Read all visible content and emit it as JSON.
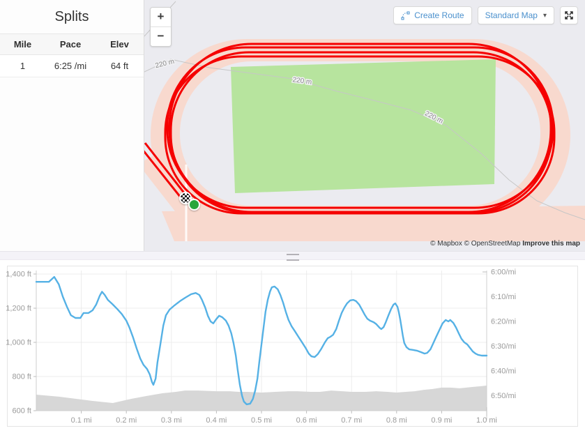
{
  "splits": {
    "title": "Splits",
    "columns": [
      "Mile",
      "Pace",
      "Elev"
    ],
    "rows": [
      {
        "mile": "1",
        "pace": "6:25",
        "pace_unit": "/mi",
        "elev": "64",
        "elev_unit": "ft"
      }
    ]
  },
  "map": {
    "zoom_in": "+",
    "zoom_out": "−",
    "create_route": "Create Route",
    "map_style": "Standard Map",
    "chevron": "▾",
    "contour_label": "220 m",
    "attribution": {
      "mapbox": "© Mapbox",
      "osm": "© OpenStreetMap",
      "improve": "Improve this map"
    },
    "colors": {
      "track": "#f8d9ce",
      "infield": "#b7e49e",
      "route": "#f50000",
      "background": "#ebebf0",
      "start_marker": "#28a63c"
    }
  },
  "chart_data": {
    "type": "line",
    "title": "",
    "x_ticks": [
      "0.1 mi",
      "0.2 mi",
      "0.3 mi",
      "0.4 mi",
      "0.5 mi",
      "0.6 mi",
      "0.7 mi",
      "0.8 mi",
      "0.9 mi",
      "1.0 mi"
    ],
    "x_tick_mi": [
      0.1,
      0.2,
      0.3,
      0.4,
      0.5,
      0.6,
      0.7,
      0.8,
      0.9,
      1.0
    ],
    "y_left_ticks": [
      "1,400 ft",
      "1,200 ft",
      "1,000 ft",
      "800 ft",
      "600 ft"
    ],
    "y_left_values": [
      1400,
      1200,
      1000,
      800,
      600
    ],
    "y_left_range": [
      600,
      1400
    ],
    "y_right_ticks": [
      "6:00/mi",
      "6:10/mi",
      "6:20/mi",
      "6:30/mi",
      "6:40/mi",
      "6:50/mi"
    ],
    "y_right_values_sec": [
      360,
      370,
      380,
      390,
      400,
      410
    ],
    "x_range_mi": [
      0,
      1.0
    ],
    "grid": true,
    "legend": "none",
    "series": [
      {
        "name": "pace",
        "axis": "right",
        "unit": "seconds_per_mile",
        "color": "#55b1e5",
        "style": "line",
        "points": [
          [
            0,
            364
          ],
          [
            0.028,
            364
          ],
          [
            0.034,
            363
          ],
          [
            0.04,
            362
          ],
          [
            0.05,
            365
          ],
          [
            0.059,
            370
          ],
          [
            0.068,
            374
          ],
          [
            0.077,
            377.5
          ],
          [
            0.087,
            378.6
          ],
          [
            0.098,
            378.6
          ],
          [
            0.105,
            376.6
          ],
          [
            0.116,
            376.6
          ],
          [
            0.125,
            375.5
          ],
          [
            0.133,
            373.2
          ],
          [
            0.141,
            369.6
          ],
          [
            0.146,
            368
          ],
          [
            0.152,
            369.3
          ],
          [
            0.159,
            371.3
          ],
          [
            0.169,
            373
          ],
          [
            0.18,
            375
          ],
          [
            0.19,
            377
          ],
          [
            0.2,
            379.7
          ],
          [
            0.207,
            382.5
          ],
          [
            0.215,
            386.5
          ],
          [
            0.223,
            391
          ],
          [
            0.231,
            395
          ],
          [
            0.238,
            397.5
          ],
          [
            0.246,
            399.2
          ],
          [
            0.252,
            401.4
          ],
          [
            0.257,
            404.5
          ],
          [
            0.26,
            405.6
          ],
          [
            0.265,
            403.1
          ],
          [
            0.269,
            396.6
          ],
          [
            0.276,
            388.7
          ],
          [
            0.282,
            381.7
          ],
          [
            0.288,
            377.5
          ],
          [
            0.296,
            375.2
          ],
          [
            0.307,
            373.5
          ],
          [
            0.319,
            371.8
          ],
          [
            0.331,
            370.4
          ],
          [
            0.344,
            369
          ],
          [
            0.354,
            368.5
          ],
          [
            0.362,
            369.3
          ],
          [
            0.368,
            371.3
          ],
          [
            0.375,
            374.4
          ],
          [
            0.381,
            377.7
          ],
          [
            0.387,
            380
          ],
          [
            0.393,
            380.8
          ],
          [
            0.399,
            379.2
          ],
          [
            0.406,
            377.7
          ],
          [
            0.413,
            378.3
          ],
          [
            0.421,
            379.7
          ],
          [
            0.427,
            381.7
          ],
          [
            0.433,
            384.8
          ],
          [
            0.438,
            388.7
          ],
          [
            0.443,
            393.8
          ],
          [
            0.447,
            399.4
          ],
          [
            0.452,
            405.6
          ],
          [
            0.457,
            410.1
          ],
          [
            0.461,
            412.4
          ],
          [
            0.467,
            413.5
          ],
          [
            0.475,
            413.2
          ],
          [
            0.481,
            411.3
          ],
          [
            0.486,
            407.9
          ],
          [
            0.491,
            403.1
          ],
          [
            0.495,
            396.6
          ],
          [
            0.5,
            389.3
          ],
          [
            0.505,
            382
          ],
          [
            0.509,
            376.1
          ],
          [
            0.514,
            371.3
          ],
          [
            0.519,
            367.9
          ],
          [
            0.523,
            366.2
          ],
          [
            0.529,
            365.9
          ],
          [
            0.536,
            367
          ],
          [
            0.542,
            369.3
          ],
          [
            0.548,
            372.4
          ],
          [
            0.554,
            376.1
          ],
          [
            0.56,
            379.4
          ],
          [
            0.567,
            382
          ],
          [
            0.574,
            383.9
          ],
          [
            0.582,
            386.2
          ],
          [
            0.59,
            388.4
          ],
          [
            0.598,
            390.7
          ],
          [
            0.605,
            393
          ],
          [
            0.611,
            394.1
          ],
          [
            0.618,
            394.4
          ],
          [
            0.625,
            393.2
          ],
          [
            0.633,
            391
          ],
          [
            0.641,
            388.4
          ],
          [
            0.647,
            386.8
          ],
          [
            0.653,
            386.2
          ],
          [
            0.659,
            385.4
          ],
          [
            0.666,
            383.1
          ],
          [
            0.672,
            379.7
          ],
          [
            0.678,
            376.6
          ],
          [
            0.684,
            374.4
          ],
          [
            0.69,
            372.7
          ],
          [
            0.697,
            371.5
          ],
          [
            0.704,
            371.3
          ],
          [
            0.71,
            371.8
          ],
          [
            0.717,
            373.2
          ],
          [
            0.723,
            375.2
          ],
          [
            0.729,
            377.2
          ],
          [
            0.735,
            378.9
          ],
          [
            0.741,
            379.7
          ],
          [
            0.749,
            380.3
          ],
          [
            0.755,
            381.1
          ],
          [
            0.762,
            382.5
          ],
          [
            0.766,
            383.1
          ],
          [
            0.771,
            382.3
          ],
          [
            0.776,
            380.3
          ],
          [
            0.782,
            377.5
          ],
          [
            0.788,
            374.9
          ],
          [
            0.793,
            373.2
          ],
          [
            0.797,
            372.7
          ],
          [
            0.802,
            374.1
          ],
          [
            0.805,
            376.3
          ],
          [
            0.808,
            379.2
          ],
          [
            0.811,
            382.5
          ],
          [
            0.814,
            385.9
          ],
          [
            0.817,
            388.7
          ],
          [
            0.822,
            390.4
          ],
          [
            0.828,
            391.3
          ],
          [
            0.836,
            391.5
          ],
          [
            0.845,
            391.8
          ],
          [
            0.854,
            392.4
          ],
          [
            0.862,
            393
          ],
          [
            0.868,
            392.7
          ],
          [
            0.875,
            391.3
          ],
          [
            0.881,
            389
          ],
          [
            0.888,
            386.2
          ],
          [
            0.896,
            383.1
          ],
          [
            0.902,
            380.8
          ],
          [
            0.909,
            379.4
          ],
          [
            0.915,
            380
          ],
          [
            0.919,
            379.4
          ],
          [
            0.926,
            380.6
          ],
          [
            0.932,
            382.5
          ],
          [
            0.938,
            384.8
          ],
          [
            0.944,
            387
          ],
          [
            0.95,
            388.4
          ],
          [
            0.957,
            389.3
          ],
          [
            0.963,
            390.7
          ],
          [
            0.969,
            392.1
          ],
          [
            0.975,
            393
          ],
          [
            0.981,
            393.5
          ],
          [
            0.989,
            393.8
          ],
          [
            1,
            393.8
          ]
        ]
      },
      {
        "name": "elevation",
        "axis": "left",
        "unit": "ft",
        "color": "#d7d7d7",
        "style": "area",
        "points": [
          [
            0,
            694
          ],
          [
            0.05,
            682
          ],
          [
            0.09,
            669
          ],
          [
            0.125,
            657
          ],
          [
            0.155,
            649
          ],
          [
            0.17,
            645
          ],
          [
            0.21,
            669
          ],
          [
            0.245,
            686
          ],
          [
            0.28,
            702
          ],
          [
            0.31,
            710
          ],
          [
            0.33,
            718
          ],
          [
            0.36,
            718
          ],
          [
            0.4,
            714
          ],
          [
            0.43,
            714
          ],
          [
            0.45,
            710
          ],
          [
            0.47,
            710
          ],
          [
            0.5,
            706
          ],
          [
            0.53,
            710
          ],
          [
            0.56,
            714
          ],
          [
            0.58,
            714
          ],
          [
            0.61,
            710
          ],
          [
            0.63,
            710
          ],
          [
            0.655,
            718
          ],
          [
            0.68,
            714
          ],
          [
            0.7,
            710
          ],
          [
            0.73,
            710
          ],
          [
            0.755,
            714
          ],
          [
            0.78,
            710
          ],
          [
            0.8,
            706
          ],
          [
            0.82,
            710
          ],
          [
            0.84,
            714
          ],
          [
            0.86,
            722
          ],
          [
            0.88,
            727
          ],
          [
            0.9,
            735
          ],
          [
            0.92,
            735
          ],
          [
            0.94,
            731
          ],
          [
            0.955,
            735
          ],
          [
            0.97,
            739
          ],
          [
            0.985,
            743
          ],
          [
            1,
            747
          ]
        ]
      }
    ]
  }
}
